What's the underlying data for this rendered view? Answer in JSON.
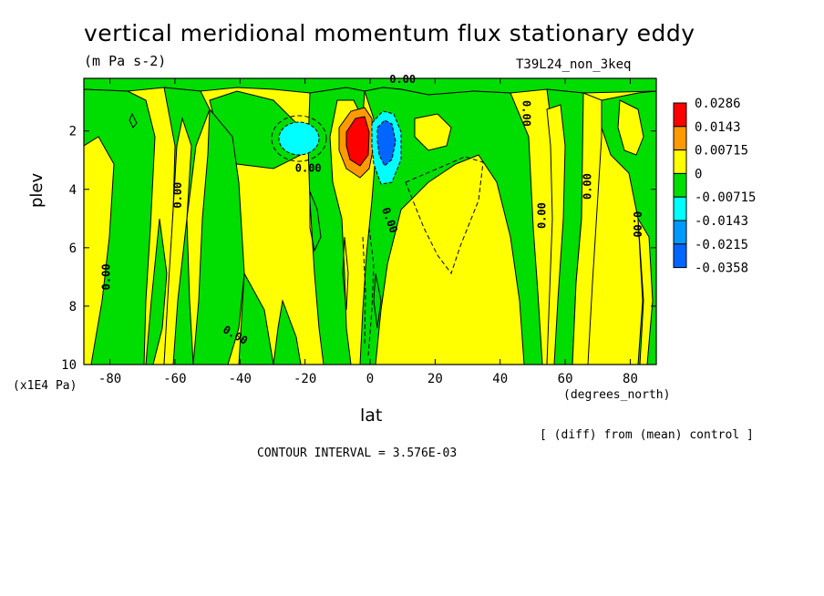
{
  "chart_data": {
    "type": "heatmap",
    "title": "vertical meridional momentum flux stationary eddy",
    "units": "(m Pa s-2)",
    "run_label": "T39L24_non_3keq",
    "xlabel": "lat",
    "x_unit": "(degrees_north)",
    "ylabel": "plev",
    "y_unit": "(x1E4 Pa)",
    "xlim": [
      -88,
      88
    ],
    "ylim": [
      10,
      0.2
    ],
    "x_ticks": [
      "-80",
      "-60",
      "-40",
      "-20",
      "0",
      "20",
      "40",
      "60",
      "80"
    ],
    "x_tick_values": [
      -80,
      -60,
      -40,
      -20,
      0,
      20,
      40,
      60,
      80
    ],
    "y_ticks": [
      "2",
      "4",
      "6",
      "8",
      "10"
    ],
    "y_tick_values": [
      2,
      4,
      6,
      8,
      10
    ],
    "legend": {
      "labels": [
        "0.0286",
        "0.0143",
        "0.00715",
        "0",
        "-0.00715",
        "-0.0143",
        "-0.0215",
        "-0.0358"
      ],
      "colors": [
        "#ff0000",
        "#ff9900",
        "#ffff00",
        "#00dd00",
        "#00ffff",
        "#0099ff",
        "#0066ff"
      ]
    },
    "contour_labels": [
      "0.00",
      "0.00",
      "0.00",
      "0.00",
      "0.00",
      "0.00",
      "0.00",
      "0.00",
      "0.00",
      "0.00"
    ],
    "note": "[ (diff) from (mean) control ]",
    "contour_interval": "CONTOUR INTERVAL = 3.576E-03"
  },
  "colors": {
    "positive_weak": "#ffff00",
    "negative_weak": "#00dd00",
    "positive_mid": "#ff9900",
    "positive_strong": "#ff0000",
    "negative_mid": "#00ffff",
    "negative_strong": "#0066ff"
  }
}
